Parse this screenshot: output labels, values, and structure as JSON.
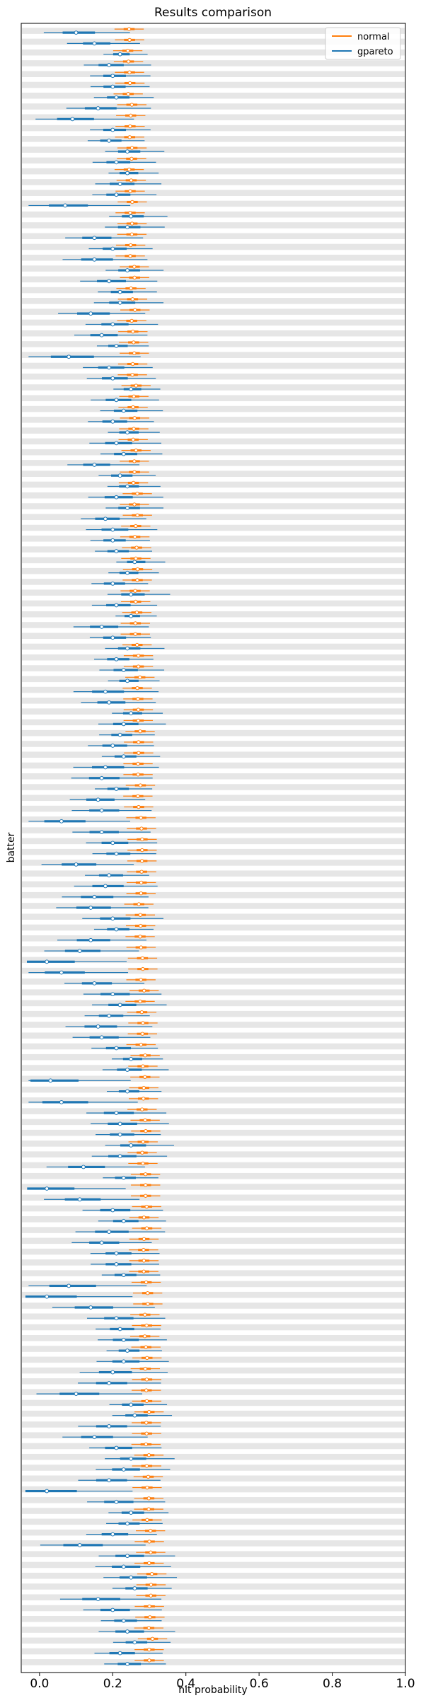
{
  "chart_data": {
    "type": "forest",
    "title": "Results comparison",
    "xlabel": "hit probability",
    "ylabel": "batter",
    "xlim": [
      -0.05,
      1.0
    ],
    "xticks": [
      {
        "value": 0.0,
        "label": "0.0"
      },
      {
        "value": 0.2,
        "label": "0.2"
      },
      {
        "value": 0.4,
        "label": "0.4"
      },
      {
        "value": 0.6,
        "label": "0.6"
      },
      {
        "value": 0.8,
        "label": "0.8"
      },
      {
        "value": 1.0,
        "label": "1.0"
      }
    ],
    "row_count": 152,
    "legend": {
      "placement": "top-right",
      "entries": [
        {
          "name": "normal",
          "color": "#ff7f0e"
        },
        {
          "name": "gpareto",
          "color": "#1f77b4"
        }
      ]
    },
    "band_color": "#e6e6e6",
    "normal": {
      "start_mean": 0.245,
      "end_mean": 0.305,
      "hdi_half_width": 0.04,
      "iqr_half_width": 0.015
    },
    "gpareto": {
      "median": [
        0.1,
        0.15,
        0.22,
        0.19,
        0.2,
        0.2,
        0.21,
        0.16,
        0.09,
        0.2,
        0.19,
        0.24,
        0.21,
        0.24,
        0.22,
        0.21,
        0.07,
        0.25,
        0.24,
        0.15,
        0.2,
        0.15,
        0.24,
        0.19,
        0.22,
        0.22,
        0.14,
        0.2,
        0.17,
        0.21,
        0.08,
        0.19,
        0.2,
        0.25,
        0.21,
        0.23,
        0.2,
        0.24,
        0.21,
        0.23,
        0.15,
        0.22,
        0.24,
        0.21,
        0.24,
        0.18,
        0.2,
        0.2,
        0.21,
        0.26,
        0.24,
        0.2,
        0.25,
        0.21,
        0.25,
        0.17,
        0.2,
        0.24,
        0.21,
        0.23,
        0.24,
        0.18,
        0.19,
        0.25,
        0.23,
        0.22,
        0.2,
        0.23,
        0.18,
        0.17,
        0.21,
        0.16,
        0.17,
        0.06,
        0.17,
        0.2,
        0.21,
        0.1,
        0.19,
        0.18,
        0.15,
        0.14,
        0.2,
        0.21,
        0.14,
        0.11,
        0.02,
        0.06,
        0.15,
        0.2,
        0.22,
        0.19,
        0.16,
        0.17,
        0.21,
        0.25,
        0.24,
        0.03,
        0.24,
        0.06,
        0.21,
        0.22,
        0.22,
        0.25,
        0.22,
        0.12,
        0.23,
        0.02,
        0.11,
        0.2,
        0.23,
        0.19,
        0.17,
        0.21,
        0.21,
        0.23,
        0.08,
        0.02,
        0.14,
        0.21,
        0.22,
        0.23,
        0.24,
        0.23,
        0.2,
        0.19,
        0.1,
        0.25,
        0.26,
        0.19,
        0.15,
        0.21,
        0.25,
        0.23,
        0.19,
        0.02,
        0.21,
        0.25,
        0.24,
        0.2,
        0.11,
        0.24,
        0.23,
        0.25,
        0.26,
        0.16,
        0.2,
        0.23,
        0.24,
        0.26,
        0.22,
        0.24
      ]
    }
  }
}
